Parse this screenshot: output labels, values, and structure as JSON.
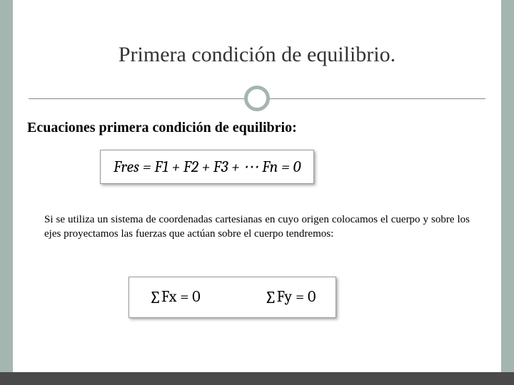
{
  "colors": {
    "side_bar": "#a5b5b0",
    "bottom_bar": "#4a4a4a",
    "title_text": "#333333",
    "body_text": "#000000",
    "hr_line": "#888888",
    "circle_border": "#a5b5b0",
    "box_border": "#999999",
    "background": "#ffffff"
  },
  "typography": {
    "title_fontsize": 30,
    "subtitle_fontsize": 20,
    "body_fontsize": 15,
    "equation_fontsize": 22,
    "font_family_body": "Georgia",
    "font_family_math": "Cambria"
  },
  "title": "Primera condición de equilibrio.",
  "subtitle": "Ecuaciones primera condición de equilibrio:",
  "equation1": "Fres = F1 + F2 + F3 + ⋯ Fn = 0",
  "body": "Si se utiliza un sistema de coordenadas cartesianas en cuyo origen colocamos el cuerpo y sobre los ejes proyectamos las fuerzas que actúan sobre el cuerpo tendremos:",
  "equation2_left": "∑Fx = 0",
  "equation2_right": "∑Fy = 0"
}
